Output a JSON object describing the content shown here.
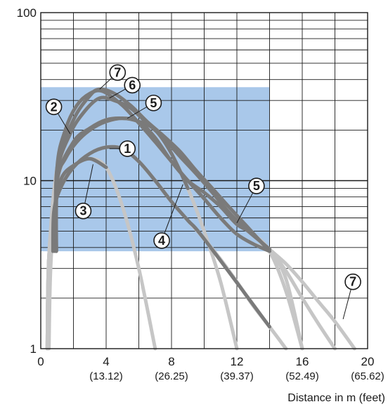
{
  "chart_data": {
    "type": "line",
    "x_axis": {
      "range": [
        0,
        20
      ],
      "label": "Distance in m (feet)",
      "ticks": [
        {
          "value": 0,
          "label": "0",
          "sublabel": ""
        },
        {
          "value": 4,
          "label": "4",
          "sublabel": "(13.12)"
        },
        {
          "value": 8,
          "label": "8",
          "sublabel": "(26.25)"
        },
        {
          "value": 12,
          "label": "12",
          "sublabel": "(39.37)"
        },
        {
          "value": 16,
          "label": "16",
          "sublabel": "(52.49)"
        },
        {
          "value": 20,
          "label": "20",
          "sublabel": "(65.62)"
        }
      ]
    },
    "y_axis": {
      "scale": "log",
      "range": [
        1,
        100
      ],
      "label": "",
      "ticks": [
        {
          "value": 1,
          "label": "1"
        },
        {
          "value": 10,
          "label": "10"
        },
        {
          "value": 100,
          "label": "100"
        }
      ]
    },
    "grid": true,
    "highlight_region": {
      "x": [
        0,
        14
      ],
      "y": [
        3.8,
        36
      ],
      "color": "#a9c8ea"
    },
    "colors": {
      "dark_curve": "#7a7a7a",
      "light_curve": "#c6c6c6",
      "grid": "#1a1a1a"
    },
    "series": [
      {
        "name": "1",
        "dark_end_x": 14,
        "points": [
          [
            0.4,
            1
          ],
          [
            0.5,
            3
          ],
          [
            0.8,
            6.5
          ],
          [
            1.2,
            9
          ],
          [
            2,
            12
          ],
          [
            3,
            14.5
          ],
          [
            4,
            15.8
          ],
          [
            5,
            15.5
          ],
          [
            6,
            13
          ],
          [
            7,
            10
          ],
          [
            8,
            7.5
          ],
          [
            9,
            5.8
          ],
          [
            10,
            4.5
          ],
          [
            11,
            3.4
          ],
          [
            12,
            2.5
          ],
          [
            13,
            1.8
          ],
          [
            14,
            1.35
          ],
          [
            15,
            1
          ]
        ]
      },
      {
        "name": "2",
        "dark_end_x": 14,
        "points": [
          [
            0.4,
            1
          ],
          [
            0.5,
            3.5
          ],
          [
            1,
            12
          ],
          [
            1.5,
            20
          ],
          [
            2.2,
            28
          ],
          [
            3,
            33
          ],
          [
            3.8,
            34
          ],
          [
            5,
            28
          ],
          [
            6,
            22
          ],
          [
            7,
            17
          ],
          [
            8,
            13
          ],
          [
            9,
            10
          ],
          [
            10,
            7.8
          ],
          [
            11,
            6
          ],
          [
            12,
            4.8
          ],
          [
            13,
            4.2
          ],
          [
            14,
            3.8
          ],
          [
            15,
            2.6
          ],
          [
            16,
            1
          ]
        ]
      },
      {
        "name": "3",
        "dark_end_x": 4,
        "points": [
          [
            0.5,
            1
          ],
          [
            0.6,
            3
          ],
          [
            0.9,
            7.5
          ],
          [
            1.3,
            10.5
          ],
          [
            2,
            12.3
          ],
          [
            3,
            13.5
          ],
          [
            4,
            12
          ],
          [
            5,
            7
          ],
          [
            6,
            3
          ],
          [
            7,
            1
          ]
        ]
      },
      {
        "name": "4",
        "dark_end_x": 9,
        "points": [
          [
            0.4,
            1
          ],
          [
            0.5,
            3.5
          ],
          [
            1,
            10
          ],
          [
            1.5,
            13.5
          ],
          [
            2.2,
            17
          ],
          [
            3,
            20
          ],
          [
            4,
            22.5
          ],
          [
            5,
            23.5
          ],
          [
            6,
            22.5
          ],
          [
            7,
            20
          ],
          [
            8,
            14.5
          ],
          [
            9,
            9
          ],
          [
            10,
            5
          ],
          [
            11,
            2.5
          ],
          [
            12,
            1
          ]
        ]
      },
      {
        "name": "5",
        "dark_end_x": 14,
        "points": [
          [
            0.4,
            1
          ],
          [
            0.5,
            3.5
          ],
          [
            1,
            10
          ],
          [
            2,
            17
          ],
          [
            3,
            20.5
          ],
          [
            4,
            23
          ],
          [
            5,
            23.5
          ],
          [
            6,
            22.5
          ],
          [
            7,
            18
          ],
          [
            8,
            13
          ],
          [
            9,
            10
          ],
          [
            10,
            8.5
          ],
          [
            11,
            7
          ],
          [
            12,
            5.5
          ],
          [
            13,
            4.8
          ],
          [
            14,
            3.8
          ],
          [
            15,
            2.2
          ],
          [
            16,
            1
          ]
        ]
      },
      {
        "name": "6",
        "dark_end_x": 14,
        "points": [
          [
            0.4,
            1
          ],
          [
            0.5,
            3.5
          ],
          [
            1,
            11
          ],
          [
            1.8,
            19
          ],
          [
            2.7,
            26
          ],
          [
            3.6,
            31
          ],
          [
            4.5,
            30
          ],
          [
            5.5,
            27
          ],
          [
            6.5,
            22
          ],
          [
            7.5,
            18
          ],
          [
            8.5,
            14
          ],
          [
            9.5,
            11
          ],
          [
            10.5,
            8.5
          ],
          [
            11.5,
            6.5
          ],
          [
            12.5,
            5.2
          ],
          [
            13.5,
            4.3
          ],
          [
            14,
            3.9
          ],
          [
            15,
            2.9
          ],
          [
            16,
            2
          ],
          [
            17,
            1.4
          ],
          [
            18,
            1
          ]
        ]
      },
      {
        "name": "7",
        "dark_end_x": 14,
        "points": [
          [
            0.4,
            1
          ],
          [
            0.5,
            3.5
          ],
          [
            1,
            12
          ],
          [
            2,
            23
          ],
          [
            3,
            32
          ],
          [
            3.6,
            35
          ],
          [
            4.5,
            33
          ],
          [
            5.5,
            28
          ],
          [
            6.5,
            22.5
          ],
          [
            7.5,
            18.5
          ],
          [
            8.5,
            15
          ],
          [
            9.5,
            11.5
          ],
          [
            10.5,
            9
          ],
          [
            11.5,
            7
          ],
          [
            12.5,
            5.5
          ],
          [
            13.5,
            4.3
          ],
          [
            14,
            3.9
          ],
          [
            15,
            3.2
          ],
          [
            16,
            2.5
          ],
          [
            17,
            1.9
          ],
          [
            18,
            1.45
          ],
          [
            19.2,
            1
          ]
        ]
      }
    ],
    "callouts": [
      {
        "label": "7",
        "at": [
          4.7,
          44
        ]
      },
      {
        "label": "6",
        "at": [
          5.6,
          37
        ]
      },
      {
        "label": "5",
        "at": [
          6.9,
          29
        ]
      },
      {
        "label": "2",
        "at": [
          0.8,
          27.5
        ]
      },
      {
        "label": "1",
        "at": [
          5.3,
          15.5
        ]
      },
      {
        "label": "3",
        "at": [
          2.6,
          6.6
        ]
      },
      {
        "label": "5",
        "at": [
          13.2,
          9.3
        ]
      },
      {
        "label": "4",
        "at": [
          7.4,
          4.4
        ]
      },
      {
        "label": "7",
        "at": [
          19.1,
          2.5
        ]
      }
    ]
  }
}
